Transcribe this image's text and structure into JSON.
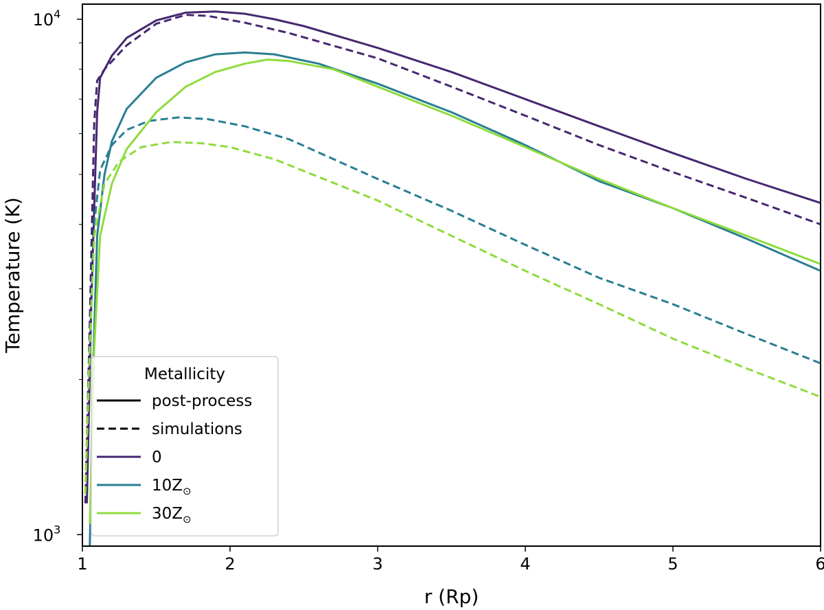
{
  "chart_data": {
    "type": "line",
    "xlabel": "r (Rp)",
    "ylabel": "Temperature (K)",
    "xlim": [
      1,
      6
    ],
    "ylim": [
      950,
      10700
    ],
    "yscale": "log",
    "xticks": [
      1,
      2,
      3,
      4,
      5,
      6
    ],
    "xtick_labels": [
      "1",
      "2",
      "3",
      "4",
      "5",
      "6"
    ],
    "yticks_major": [
      1000,
      10000
    ],
    "ytick_major_labels": {
      "base": "10",
      "exps": [
        "3",
        "4"
      ]
    },
    "yticks_minor": [
      2000,
      3000,
      4000,
      5000,
      6000,
      7000,
      8000,
      9000
    ],
    "legend": {
      "title": "Metallicity",
      "location": "lower-left",
      "entries": [
        {
          "label": "post-process",
          "style": "solid",
          "color": "#000000"
        },
        {
          "label": "simulations",
          "style": "dashed",
          "color": "#000000"
        },
        {
          "label": "0",
          "style": "solid",
          "color": "#46276f"
        },
        {
          "label_base": "10Z",
          "label_sub": "⊙",
          "style": "solid",
          "color": "#287e92"
        },
        {
          "label_base": "30Z",
          "label_sub": "⊙",
          "style": "solid",
          "color": "#8edb3c"
        }
      ]
    },
    "series": [
      {
        "name": "0 post-process",
        "color": "#46276f",
        "style": "solid",
        "points": [
          [
            1.03,
            1150
          ],
          [
            1.06,
            2800
          ],
          [
            1.1,
            6600
          ],
          [
            1.12,
            7700
          ],
          [
            1.2,
            8500
          ],
          [
            1.3,
            9200
          ],
          [
            1.5,
            9950
          ],
          [
            1.7,
            10300
          ],
          [
            1.9,
            10350
          ],
          [
            2.1,
            10250
          ],
          [
            2.3,
            10000
          ],
          [
            2.5,
            9700
          ],
          [
            3.0,
            8800
          ],
          [
            3.5,
            7900
          ],
          [
            4.0,
            7000
          ],
          [
            4.5,
            6200
          ],
          [
            5.0,
            5500
          ],
          [
            5.5,
            4900
          ],
          [
            6.0,
            4400
          ]
        ]
      },
      {
        "name": "0 simulations",
        "color": "#46276f",
        "style": "dashed",
        "points": [
          [
            1.02,
            1150
          ],
          [
            1.05,
            2600
          ],
          [
            1.08,
            6300
          ],
          [
            1.1,
            7600
          ],
          [
            1.15,
            8000
          ],
          [
            1.3,
            8900
          ],
          [
            1.5,
            9800
          ],
          [
            1.7,
            10200
          ],
          [
            1.85,
            10150
          ],
          [
            2.1,
            9850
          ],
          [
            2.4,
            9400
          ],
          [
            3.0,
            8400
          ],
          [
            3.5,
            7400
          ],
          [
            4.0,
            6500
          ],
          [
            4.5,
            5700
          ],
          [
            5.0,
            5050
          ],
          [
            5.5,
            4500
          ],
          [
            6.0,
            4000
          ]
        ]
      },
      {
        "name": "10Z post-process",
        "color": "#287e92",
        "style": "solid",
        "points": [
          [
            1.05,
            950
          ],
          [
            1.07,
            2000
          ],
          [
            1.1,
            3800
          ],
          [
            1.15,
            5000
          ],
          [
            1.2,
            5800
          ],
          [
            1.3,
            6700
          ],
          [
            1.5,
            7700
          ],
          [
            1.7,
            8250
          ],
          [
            1.9,
            8550
          ],
          [
            2.1,
            8620
          ],
          [
            2.3,
            8550
          ],
          [
            2.6,
            8200
          ],
          [
            3.0,
            7500
          ],
          [
            3.5,
            6600
          ],
          [
            4.0,
            5700
          ],
          [
            4.5,
            4850
          ],
          [
            5.0,
            4300
          ],
          [
            5.5,
            3750
          ],
          [
            6.0,
            3250
          ]
        ]
      },
      {
        "name": "10Z simulations",
        "color": "#287e92",
        "style": "dashed",
        "points": [
          [
            1.02,
            1200
          ],
          [
            1.05,
            2400
          ],
          [
            1.08,
            4000
          ],
          [
            1.12,
            5100
          ],
          [
            1.2,
            5700
          ],
          [
            1.3,
            6100
          ],
          [
            1.45,
            6350
          ],
          [
            1.65,
            6450
          ],
          [
            1.85,
            6400
          ],
          [
            2.1,
            6200
          ],
          [
            2.4,
            5850
          ],
          [
            3.0,
            4900
          ],
          [
            3.5,
            4250
          ],
          [
            4.0,
            3650
          ],
          [
            4.5,
            3150
          ],
          [
            5.0,
            2800
          ],
          [
            5.5,
            2450
          ],
          [
            6.0,
            2150
          ]
        ]
      },
      {
        "name": "30Z post-process",
        "color": "#8edb3c",
        "style": "solid",
        "points": [
          [
            1.05,
            1050
          ],
          [
            1.08,
            2300
          ],
          [
            1.12,
            3800
          ],
          [
            1.2,
            4800
          ],
          [
            1.3,
            5600
          ],
          [
            1.5,
            6600
          ],
          [
            1.7,
            7400
          ],
          [
            1.9,
            7900
          ],
          [
            2.1,
            8200
          ],
          [
            2.25,
            8350
          ],
          [
            2.4,
            8300
          ],
          [
            2.7,
            8000
          ],
          [
            3.0,
            7400
          ],
          [
            3.5,
            6500
          ],
          [
            4.0,
            5650
          ],
          [
            4.5,
            4900
          ],
          [
            5.0,
            4300
          ],
          [
            5.5,
            3800
          ],
          [
            6.0,
            3350
          ]
        ]
      },
      {
        "name": "30Z simulations",
        "color": "#8edb3c",
        "style": "dashed",
        "points": [
          [
            1.02,
            1200
          ],
          [
            1.05,
            2300
          ],
          [
            1.08,
            3800
          ],
          [
            1.15,
            4800
          ],
          [
            1.25,
            5300
          ],
          [
            1.4,
            5650
          ],
          [
            1.6,
            5780
          ],
          [
            1.8,
            5750
          ],
          [
            2.0,
            5650
          ],
          [
            2.3,
            5350
          ],
          [
            3.0,
            4450
          ],
          [
            3.5,
            3800
          ],
          [
            4.0,
            3250
          ],
          [
            4.5,
            2800
          ],
          [
            5.0,
            2400
          ],
          [
            5.5,
            2100
          ],
          [
            6.0,
            1850
          ]
        ]
      }
    ]
  }
}
